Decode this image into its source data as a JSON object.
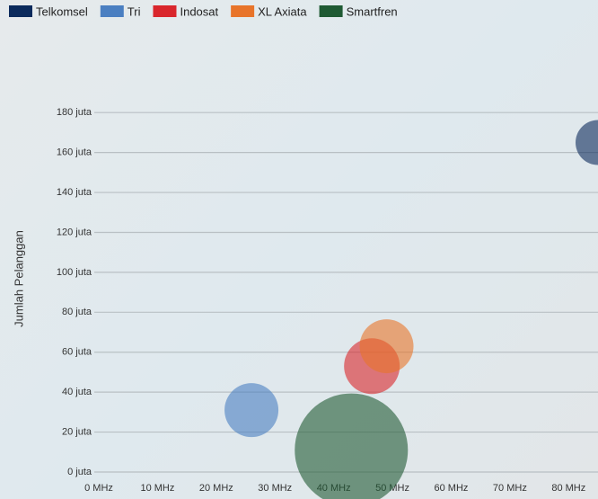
{
  "chart_data": {
    "type": "bubble",
    "y_label": "Jumlah Pelanggan",
    "xlim": [
      0,
      85
    ],
    "ylim": [
      0,
      190
    ],
    "xticks": [
      {
        "value": 0,
        "label": "0 MHz"
      },
      {
        "value": 10,
        "label": "10 MHz"
      },
      {
        "value": 20,
        "label": "20 MHz"
      },
      {
        "value": 30,
        "label": "30 MHz"
      },
      {
        "value": 40,
        "label": "40 MHz"
      },
      {
        "value": 50,
        "label": "50 MHz"
      },
      {
        "value": 60,
        "label": "60 MHz"
      },
      {
        "value": 70,
        "label": "70 MHz"
      },
      {
        "value": 80,
        "label": "80 MHz"
      }
    ],
    "yticks": [
      {
        "value": 0,
        "label": "0 juta"
      },
      {
        "value": 20,
        "label": "20 juta"
      },
      {
        "value": 40,
        "label": "40 juta"
      },
      {
        "value": 60,
        "label": "60 juta"
      },
      {
        "value": 80,
        "label": "80 juta"
      },
      {
        "value": 100,
        "label": "100 juta"
      },
      {
        "value": 120,
        "label": "120 juta"
      },
      {
        "value": 140,
        "label": "140 juta"
      },
      {
        "value": 160,
        "label": "160 juta"
      },
      {
        "value": 180,
        "label": "180 juta"
      }
    ],
    "grid": true,
    "series": [
      {
        "name": "Telkomsel",
        "color": "#0b2a5c",
        "x": [
          85
        ],
        "values": [
          165
        ],
        "sizes": [
          25
        ]
      },
      {
        "name": "Tri",
        "color": "#4a7fc1",
        "x": [
          26
        ],
        "values": [
          31
        ],
        "sizes": [
          30
        ]
      },
      {
        "name": "Indosat",
        "color": "#d9262c",
        "x": [
          46.5
        ],
        "values": [
          53
        ],
        "sizes": [
          31
        ]
      },
      {
        "name": "XL Axiata",
        "color": "#e8742a",
        "x": [
          49
        ],
        "values": [
          63
        ],
        "sizes": [
          30
        ]
      },
      {
        "name": "Smartfren",
        "color": "#1f5a33",
        "x": [
          43
        ],
        "values": [
          11
        ],
        "sizes": [
          63
        ]
      }
    ]
  }
}
